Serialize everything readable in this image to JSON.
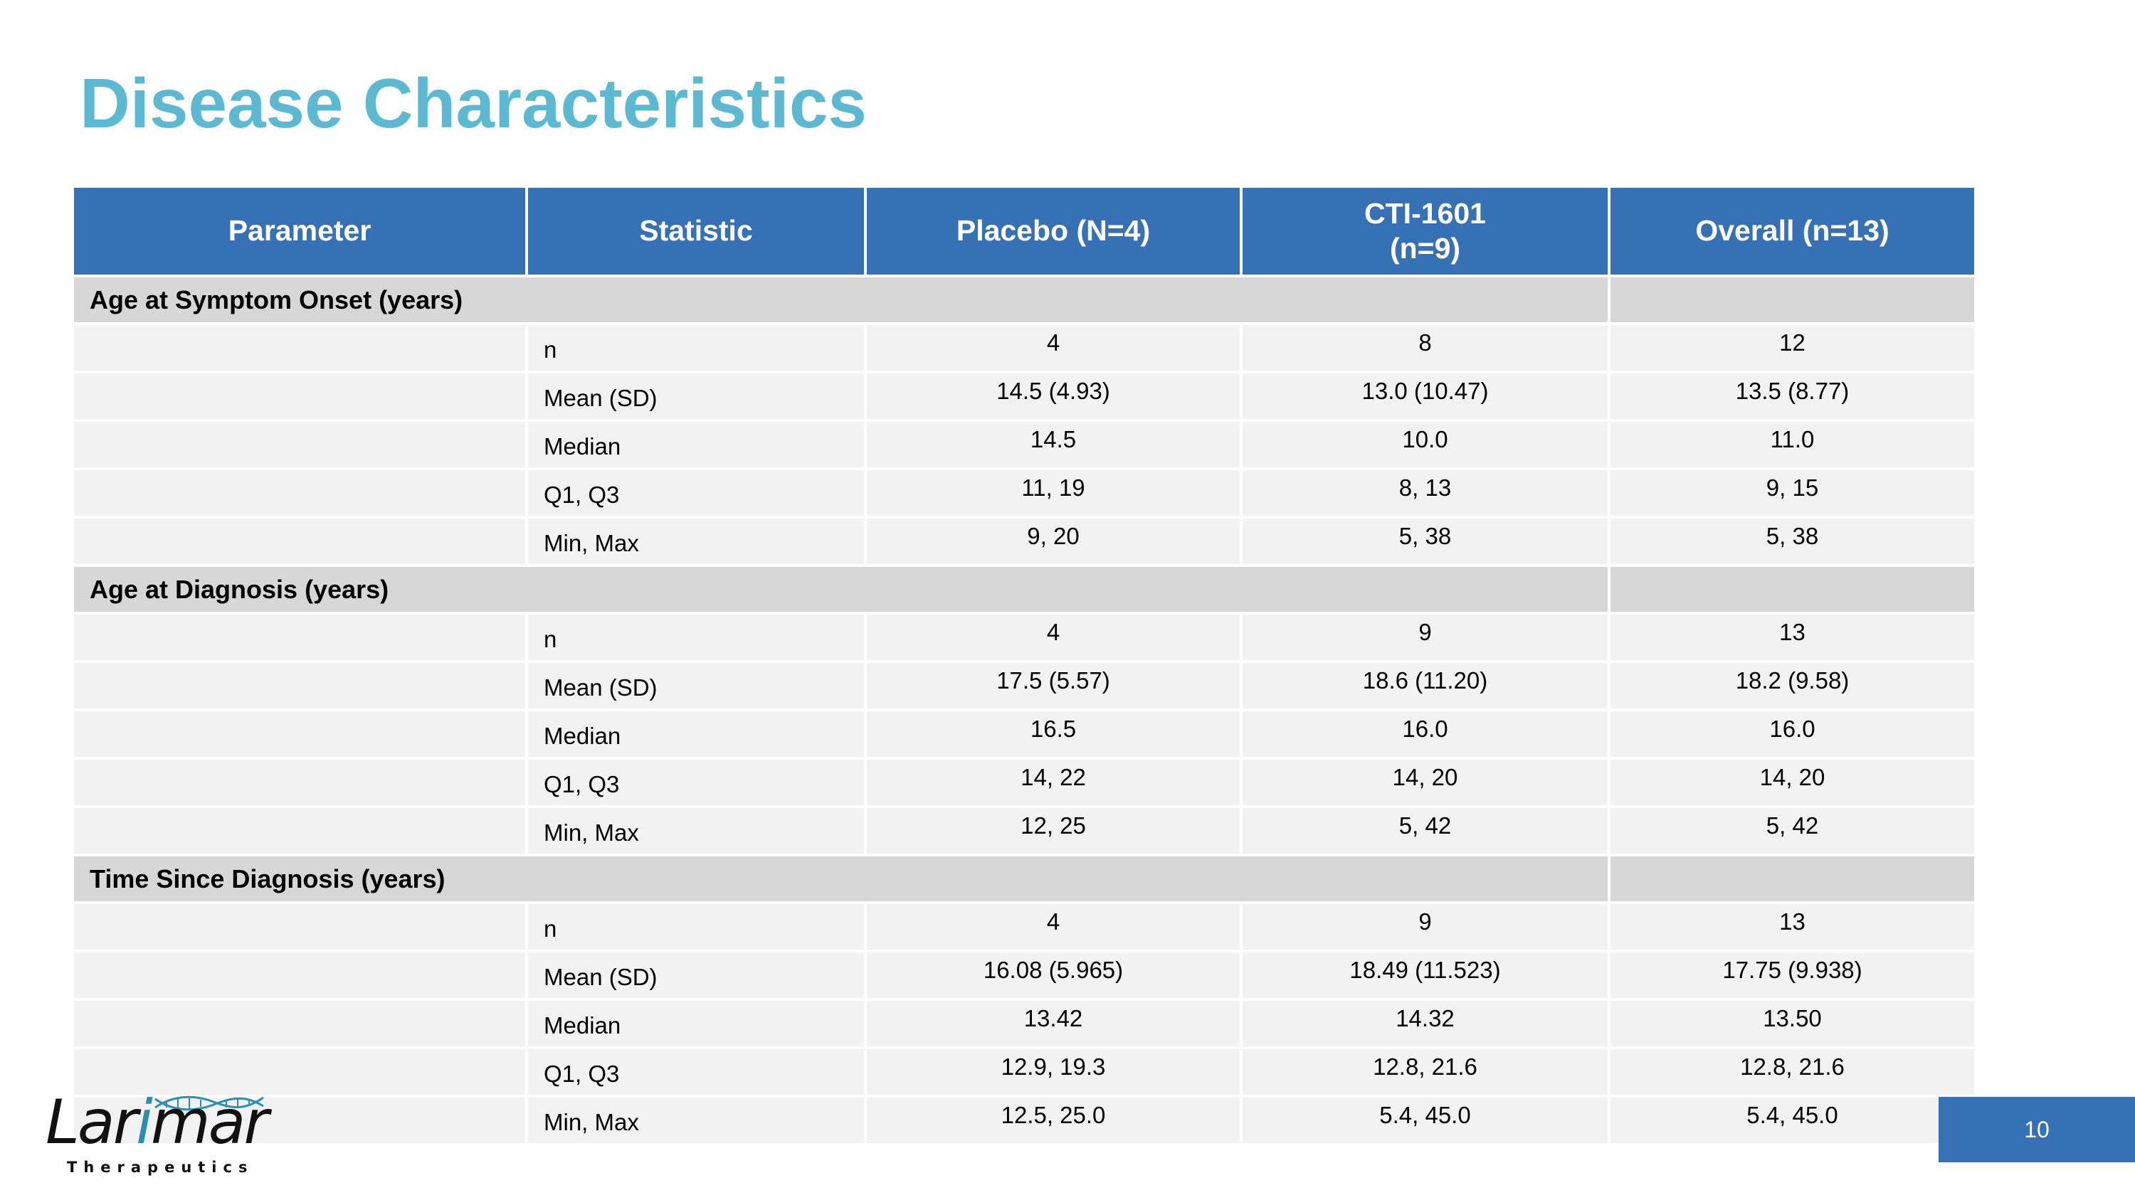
{
  "title": "Disease Characteristics",
  "table": {
    "headers": [
      "Parameter",
      "Statistic",
      "Placebo (N=4)",
      "CTI-1601 (n=9)",
      "Overall (n=13)"
    ],
    "header_lines": {
      "cti_line1": "CTI-1601",
      "cti_line2": "(n=9)"
    },
    "groups": [
      {
        "label": "Age at Symptom Onset (years)",
        "rows": [
          {
            "stat": "n",
            "placebo": "4",
            "cti": "8",
            "overall": "12"
          },
          {
            "stat": "Mean (SD)",
            "placebo": "14.5 (4.93)",
            "cti": "13.0 (10.47)",
            "overall": "13.5 (8.77)"
          },
          {
            "stat": "Median",
            "placebo": "14.5",
            "cti": "10.0",
            "overall": "11.0"
          },
          {
            "stat": "Q1, Q3",
            "placebo": "11, 19",
            "cti": "8, 13",
            "overall": "9, 15"
          },
          {
            "stat": "Min, Max",
            "placebo": "9, 20",
            "cti": "5, 38",
            "overall": "5, 38"
          }
        ]
      },
      {
        "label": "Age at Diagnosis (years)",
        "rows": [
          {
            "stat": "n",
            "placebo": "4",
            "cti": "9",
            "overall": "13"
          },
          {
            "stat": "Mean (SD)",
            "placebo": "17.5 (5.57)",
            "cti": "18.6 (11.20)",
            "overall": "18.2 (9.58)"
          },
          {
            "stat": "Median",
            "placebo": "16.5",
            "cti": "16.0",
            "overall": "16.0"
          },
          {
            "stat": "Q1, Q3",
            "placebo": "14, 22",
            "cti": "14, 20",
            "overall": "14, 20"
          },
          {
            "stat": "Min, Max",
            "placebo": "12, 25",
            "cti": "5, 42",
            "overall": "5, 42"
          }
        ]
      },
      {
        "label": "Time Since Diagnosis (years)",
        "rows": [
          {
            "stat": "n",
            "placebo": "4",
            "cti": "9",
            "overall": "13"
          },
          {
            "stat": "Mean (SD)",
            "placebo": "16.08 (5.965)",
            "cti": "18.49 (11.523)",
            "overall": "17.75 (9.938)"
          },
          {
            "stat": "Median",
            "placebo": "13.42",
            "cti": "14.32",
            "overall": "13.50"
          },
          {
            "stat": "Q1, Q3",
            "placebo": "12.9, 19.3",
            "cti": "12.8, 21.6",
            "overall": "12.8, 21.6"
          },
          {
            "stat": "Min, Max",
            "placebo": "12.5, 25.0",
            "cti": "5.4, 45.0",
            "overall": "5.4, 45.0"
          }
        ]
      }
    ]
  },
  "logo": {
    "name": "Larimar",
    "name_part1": "Lar",
    "name_part2": "i",
    "name_part3": "mar",
    "tagline": "Therapeutics"
  },
  "page_number": "10",
  "colors": {
    "title": "#5bbad1",
    "header_bg": "#3571b4",
    "group_bg": "#d7d7d7",
    "row_bg": "#f2f2f2"
  }
}
